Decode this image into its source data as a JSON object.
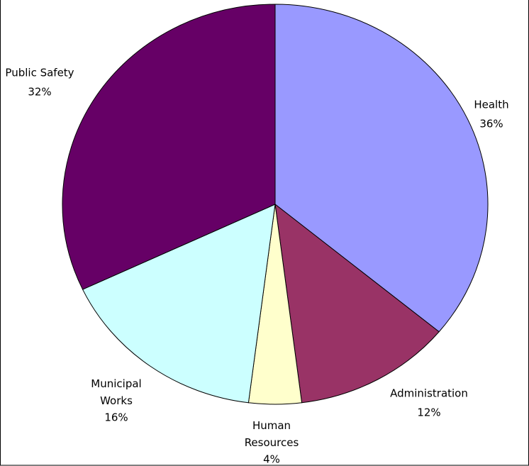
{
  "chart_data": {
    "type": "pie",
    "categories": [
      "Health",
      "Administration",
      "Human Resources",
      "Municipal Works",
      "Public Safety"
    ],
    "values": [
      36,
      12,
      4,
      16,
      32
    ],
    "value_labels": [
      "36%",
      "12%",
      "4%",
      "16%",
      "32%"
    ],
    "colors": [
      "#9999ff",
      "#993366",
      "#ffffcc",
      "#ccffff",
      "#660066"
    ]
  }
}
